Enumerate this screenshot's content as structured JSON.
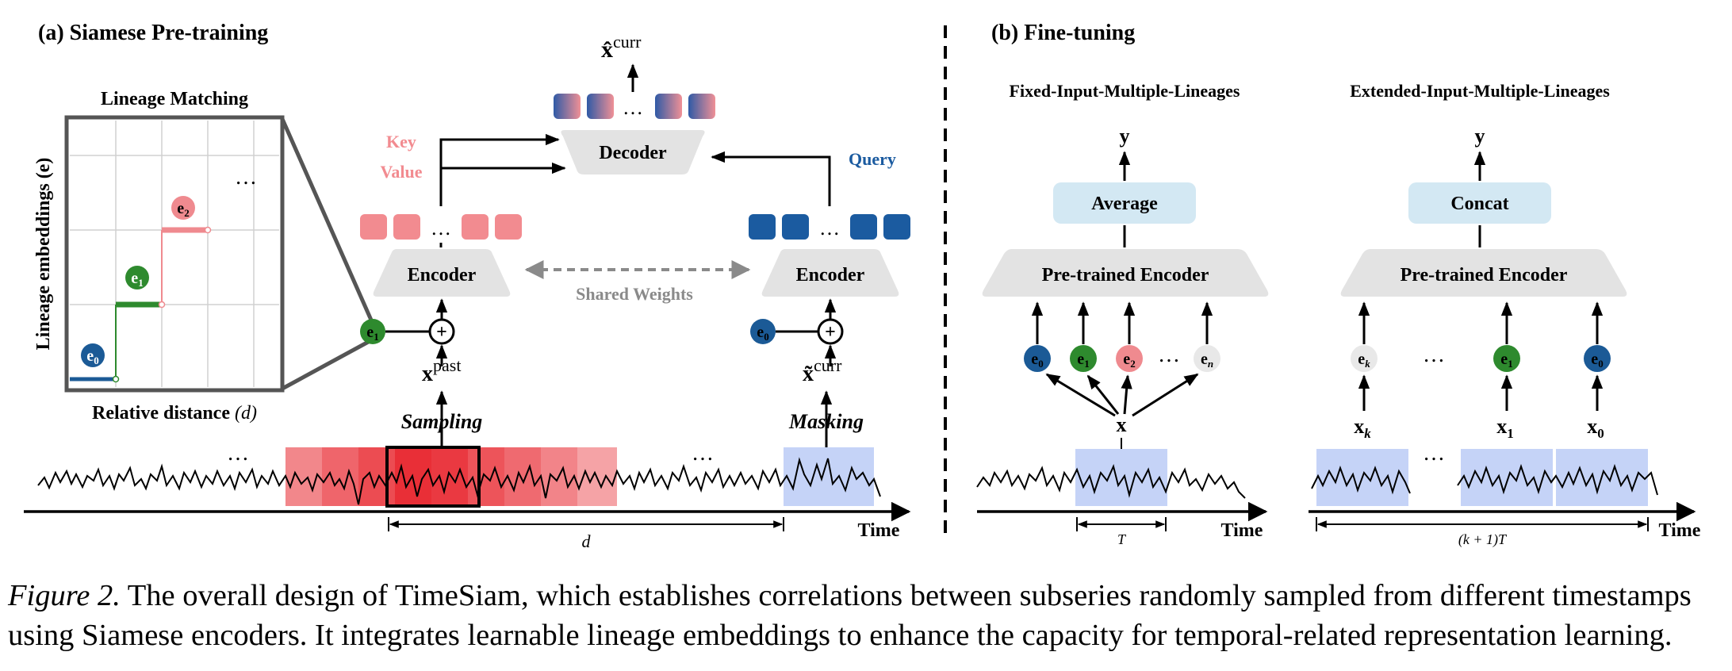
{
  "panel_a": {
    "title": "(a) Siamese Pre-training",
    "lineage_matching": {
      "title": "Lineage Matching",
      "y_axis_label": "Lineage embeddings (e)",
      "x_axis_label_main": "Relative distance",
      "x_axis_label_var": "(d)",
      "steps": [
        {
          "base": "e",
          "sub": "0",
          "color": "#1b5a96"
        },
        {
          "base": "e",
          "sub": "1",
          "color": "#2e8a2e"
        },
        {
          "base": "e",
          "sub": "2",
          "color": "#ef8a8f"
        }
      ],
      "ellipsis": "…"
    },
    "output": {
      "base": "x̂",
      "sup": "curr"
    },
    "decoder_label": "Decoder",
    "decoder_ellipsis": "…",
    "key_label": "Key",
    "value_label": "Value",
    "query_label": "Query",
    "encoder_left_label": "Encoder",
    "encoder_right_label": "Encoder",
    "shared_weights_label": "Shared Weights",
    "token_ellipsis": "…",
    "left_embedding": {
      "base": "e",
      "sub": "1"
    },
    "right_embedding": {
      "base": "e",
      "sub": "0"
    },
    "plus_symbol": "+",
    "past_input": {
      "base": "x",
      "sup": "past"
    },
    "curr_input": {
      "base": "x̃",
      "sup": "curr"
    },
    "sampling_label": "Sampling",
    "masking_label": "Masking",
    "series_ellipsis": "…",
    "distance_label": "d",
    "time_label": "Time"
  },
  "panel_b": {
    "title": "(b) Fine-tuning",
    "fixed": {
      "title": "Fixed-Input-Multiple-Lineages",
      "output_label": "y",
      "aggregate_label": "Average",
      "encoder_label": "Pre-trained Encoder",
      "embeddings": [
        {
          "base": "e",
          "sub": "0",
          "color": "#1b5a96"
        },
        {
          "base": "e",
          "sub": "1",
          "color": "#2e8a2e"
        },
        {
          "base": "e",
          "sub": "2",
          "color": "#ef8a8f"
        },
        {
          "base": "e",
          "sub": "n",
          "color": "#e8e8e8"
        }
      ],
      "ellipsis": "…",
      "input_label": "x",
      "span_label": "T",
      "time_label": "Time"
    },
    "extended": {
      "title": "Extended-Input-Multiple-Lineages",
      "output_label": "y",
      "aggregate_label": "Concat",
      "encoder_label": "Pre-trained Encoder",
      "embeddings": [
        {
          "base": "e",
          "sub": "k",
          "color": "#e8e8e8"
        },
        {
          "base": "e",
          "sub": "1",
          "color": "#2e8a2e"
        },
        {
          "base": "e",
          "sub": "0",
          "color": "#1b5a96"
        }
      ],
      "ellipsis": "…",
      "inputs": [
        {
          "base": "x",
          "sub": "k"
        },
        {
          "base": "x",
          "sub": "1"
        },
        {
          "base": "x",
          "sub": "0"
        }
      ],
      "span_label": "(k + 1)T",
      "time_label": "Time"
    }
  },
  "caption": {
    "label": "Figure 2.",
    "text": " The overall design of TimeSiam, which establishes correlations between subseries randomly sampled from different timestamps using Siamese encoders. It integrates learnable lineage embeddings to enhance the capacity for temporal-related representation learning."
  },
  "colors": {
    "key_token": "#f28b90",
    "query_token": "#1b5ba0",
    "module_gray": "#e3e3e3",
    "aggregate_blue": "#d3e8f3",
    "sample_red": "#e8242c",
    "mask_blue": "#c5d3f7",
    "lineage_blue": "#1b5a96",
    "lineage_green": "#2e8a2e",
    "lineage_pink": "#ef8a8f",
    "shared_gray": "#8a8a8a"
  }
}
